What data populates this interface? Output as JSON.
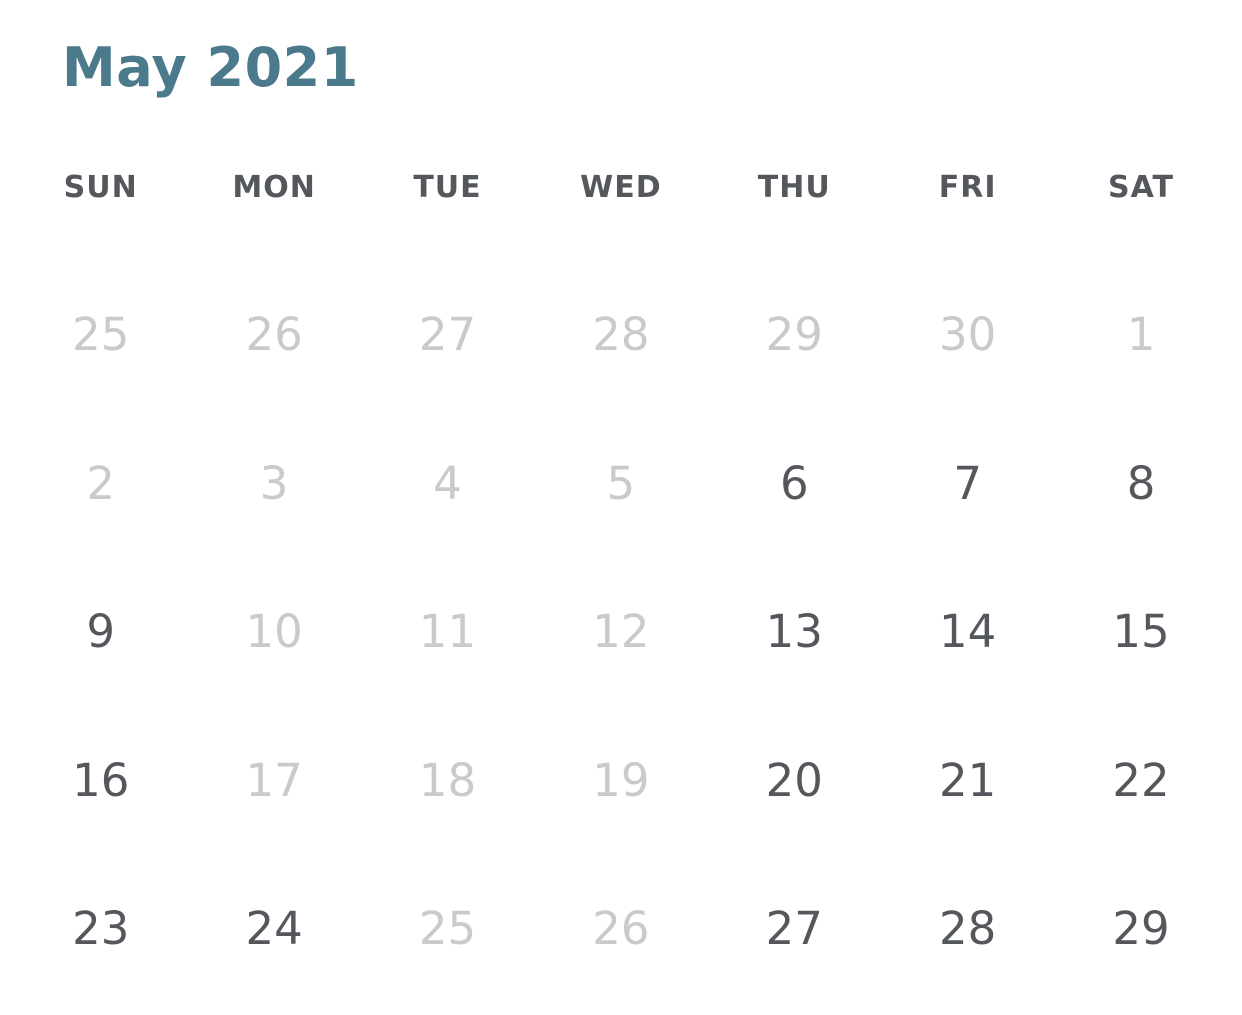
{
  "header": {
    "title": "May 2021"
  },
  "colors": {
    "title": "#4a7a8c",
    "text": "#54575c",
    "disabled": "#c9cacc",
    "background": "#ffffff"
  },
  "weekdays": [
    "SUN",
    "MON",
    "TUE",
    "WED",
    "THU",
    "FRI",
    "SAT"
  ],
  "weeks": [
    [
      {
        "label": "25",
        "enabled": false
      },
      {
        "label": "26",
        "enabled": false
      },
      {
        "label": "27",
        "enabled": false
      },
      {
        "label": "28",
        "enabled": false
      },
      {
        "label": "29",
        "enabled": false
      },
      {
        "label": "30",
        "enabled": false
      },
      {
        "label": "1",
        "enabled": false
      }
    ],
    [
      {
        "label": "2",
        "enabled": false
      },
      {
        "label": "3",
        "enabled": false
      },
      {
        "label": "4",
        "enabled": false
      },
      {
        "label": "5",
        "enabled": false
      },
      {
        "label": "6",
        "enabled": true
      },
      {
        "label": "7",
        "enabled": true
      },
      {
        "label": "8",
        "enabled": true
      }
    ],
    [
      {
        "label": "9",
        "enabled": true
      },
      {
        "label": "10",
        "enabled": false
      },
      {
        "label": "11",
        "enabled": false
      },
      {
        "label": "12",
        "enabled": false
      },
      {
        "label": "13",
        "enabled": true
      },
      {
        "label": "14",
        "enabled": true
      },
      {
        "label": "15",
        "enabled": true
      }
    ],
    [
      {
        "label": "16",
        "enabled": true
      },
      {
        "label": "17",
        "enabled": false
      },
      {
        "label": "18",
        "enabled": false
      },
      {
        "label": "19",
        "enabled": false
      },
      {
        "label": "20",
        "enabled": true
      },
      {
        "label": "21",
        "enabled": true
      },
      {
        "label": "22",
        "enabled": true
      }
    ],
    [
      {
        "label": "23",
        "enabled": true
      },
      {
        "label": "24",
        "enabled": true
      },
      {
        "label": "25",
        "enabled": false
      },
      {
        "label": "26",
        "enabled": false
      },
      {
        "label": "27",
        "enabled": true
      },
      {
        "label": "28",
        "enabled": true
      },
      {
        "label": "29",
        "enabled": true
      }
    ]
  ]
}
